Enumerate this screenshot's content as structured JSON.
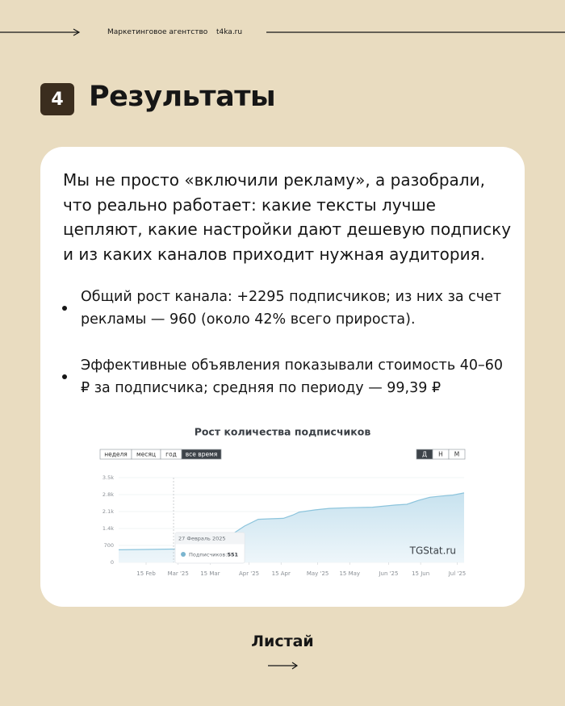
{
  "header": {
    "agency": "Маркетинговое агентство",
    "site": "t4ka.ru"
  },
  "section": {
    "number": "4",
    "title": "Результаты"
  },
  "intro": "Мы не просто «включили рекламу», а разобрали, что реально работает: какие тексты лучше цепляют, какие настройки дают дешевую подписку и из каких каналов приходит нужная аудитория.",
  "bullets": [
    "Общий рост канала: +2295 подписчиков; из них за счет рекламы — 960 (около 42% всего прироста).",
    "Эффективные объявления показывали стоимость 40–60 ₽ за подписчика; средняя по периоду — 99,39 ₽"
  ],
  "chart_data": {
    "type": "area",
    "title": "Рост количества подписчиков",
    "range_buttons": [
      "неделя",
      "месяц",
      "год",
      "все время"
    ],
    "scale_buttons": [
      "Д",
      "Н",
      "М"
    ],
    "watermark": "TGStat.ru",
    "x": [
      34,
      45,
      58,
      66,
      74,
      80,
      85,
      89,
      95,
      100,
      106,
      110,
      113,
      120,
      126,
      135,
      145,
      155,
      160,
      165,
      170,
      175,
      180,
      185
    ],
    "values": [
      520,
      535,
      551,
      570,
      700,
      900,
      1250,
      1500,
      1780,
      1800,
      1820,
      1950,
      2080,
      2170,
      2230,
      2260,
      2280,
      2370,
      2400,
      2560,
      2690,
      2740,
      2780,
      2870
    ],
    "color": "#8cc4dc",
    "xlim": [
      34,
      185
    ],
    "xticks": [
      {
        "value": 46,
        "label": "15 Feb"
      },
      {
        "value": 60,
        "label": "Mar '25"
      },
      {
        "value": 74,
        "label": "15 Mar"
      },
      {
        "value": 91,
        "label": "Apr '25"
      },
      {
        "value": 105,
        "label": "15 Apr"
      },
      {
        "value": 121,
        "label": "May '25"
      },
      {
        "value": 135,
        "label": "15 May"
      },
      {
        "value": 152,
        "label": "Jun '25"
      },
      {
        "value": 166,
        "label": "15 Jun"
      },
      {
        "value": 182,
        "label": "Jul '25"
      }
    ],
    "ylim": [
      0,
      3500
    ],
    "yticks": [
      0,
      700,
      {
        "value": 1400,
        "label": "1.4k"
      },
      {
        "value": 2100,
        "label": "2.1k"
      },
      {
        "value": 2800,
        "label": "2.8k"
      },
      {
        "value": 3500,
        "label": "3.5k"
      }
    ],
    "grid": true,
    "tooltip": {
      "x": 58,
      "date": "27 Февраль 2025",
      "label": "Подписчиков:",
      "value": 551
    }
  },
  "footer": {
    "cta": "Листай"
  }
}
